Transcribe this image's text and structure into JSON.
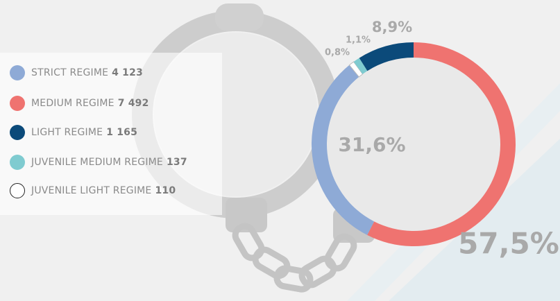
{
  "chart_data": {
    "type": "pie",
    "categories": [
      "MEDIUM REGIME",
      "STRICT REGIME",
      "JUVENILE LIGHT REGIME",
      "JUVENILE MEDIUM REGIME",
      "LIGHT REGIME"
    ],
    "values": [
      7492,
      4123,
      110,
      137,
      1165
    ],
    "value_labels": [
      "7 492",
      "4 123",
      "110",
      "137",
      "1 165"
    ],
    "percent_labels": [
      "57,5%",
      "31,6%",
      "0,8%",
      "1,1%",
      "8,9%"
    ],
    "colors": [
      "#ef7370",
      "#8eaad6",
      "#ffffff",
      "#7fcbd0",
      "#0b4a7a"
    ]
  }
}
